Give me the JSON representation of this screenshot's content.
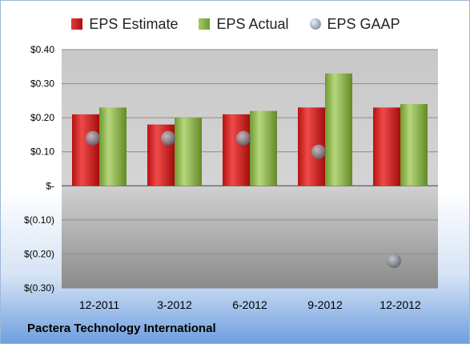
{
  "chart_data": {
    "type": "bar",
    "categories": [
      "12-2011",
      "3-2012",
      "6-2012",
      "9-2012",
      "12-2012"
    ],
    "series": [
      {
        "name": "EPS Estimate",
        "values": [
          0.21,
          0.18,
          0.21,
          0.23,
          0.23
        ],
        "color": "#c81c1c",
        "kind": "bar"
      },
      {
        "name": "EPS Actual",
        "values": [
          0.23,
          0.2,
          0.22,
          0.33,
          0.24
        ],
        "color": "#88b04b",
        "kind": "bar"
      },
      {
        "name": "EPS GAAP",
        "values": [
          0.14,
          0.14,
          0.14,
          0.1,
          -0.22
        ],
        "color": "#8a9aab",
        "kind": "marker"
      }
    ],
    "ylim": [
      -0.3,
      0.4
    ],
    "yticks": [
      {
        "value": 0.4,
        "label": "$0.40"
      },
      {
        "value": 0.3,
        "label": "$0.30"
      },
      {
        "value": 0.2,
        "label": "$0.20"
      },
      {
        "value": 0.1,
        "label": "$0.10"
      },
      {
        "value": 0.0,
        "label": "$-"
      },
      {
        "value": -0.1,
        "label": "$(0.10)"
      },
      {
        "value": -0.2,
        "label": "$(0.20)"
      },
      {
        "value": -0.3,
        "label": "$(0.30)"
      }
    ],
    "grid": true,
    "legend_position": "top",
    "company": "Pactera Technology International"
  }
}
